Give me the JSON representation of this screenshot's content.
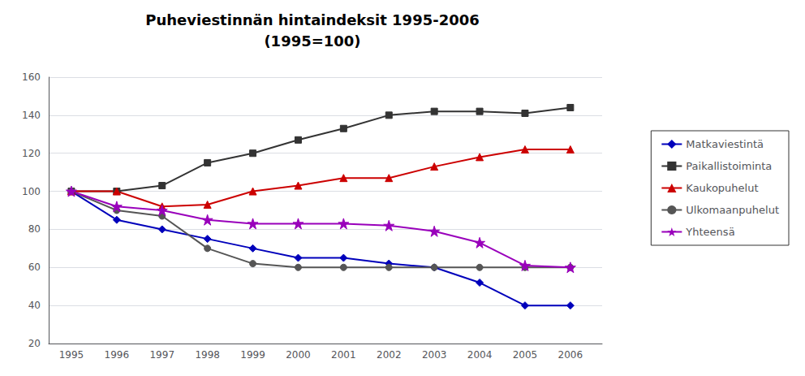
{
  "chart_data": {
    "type": "line",
    "title": "Puheviestinnän hintaindeksit 1995-2006",
    "subtitle": "(1995=100)",
    "x": [
      1995,
      1996,
      1997,
      1998,
      1999,
      2000,
      2001,
      2002,
      2003,
      2004,
      2005,
      2006
    ],
    "xlim": [
      1994.5,
      2006.7
    ],
    "xticks": [
      1995,
      1996,
      1997,
      1998,
      1999,
      2000,
      2001,
      2002,
      2003,
      2004,
      2005,
      2006
    ],
    "ylim": [
      20,
      160
    ],
    "yticks": [
      20,
      40,
      60,
      80,
      100,
      120,
      140,
      160
    ],
    "grid": true,
    "legend": "right",
    "series": [
      {
        "name": "Matkaviestintä",
        "color": "#0000BB",
        "marker": "diamond",
        "values": [
          100,
          85,
          80,
          75,
          70,
          65,
          65,
          62,
          60,
          52,
          40,
          40
        ]
      },
      {
        "name": "Paikallistoiminta",
        "color": "#333333",
        "marker": "square",
        "values": [
          100,
          100,
          103,
          115,
          120,
          127,
          133,
          140,
          142,
          142,
          141,
          144
        ]
      },
      {
        "name": "Kaukopuhelut",
        "color": "#CC0000",
        "marker": "triangle",
        "values": [
          100,
          100,
          92,
          93,
          100,
          103,
          107,
          107,
          113,
          118,
          122,
          122
        ]
      },
      {
        "name": "Ulkomaanpuhelut",
        "color": "#555555",
        "marker": "circle",
        "values": [
          100,
          90,
          87,
          70,
          62,
          60,
          60,
          60,
          60,
          60,
          60,
          60
        ]
      },
      {
        "name": "Yhteensä",
        "color": "#9900BB",
        "marker": "star",
        "values": [
          100,
          92,
          90,
          85,
          83,
          83,
          83,
          82,
          79,
          73,
          61,
          60
        ]
      }
    ]
  }
}
